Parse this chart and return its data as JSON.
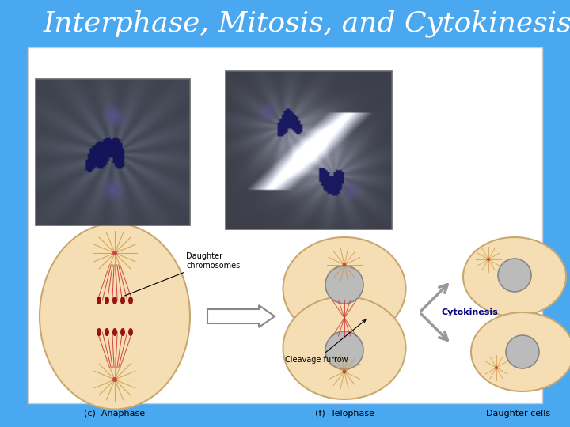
{
  "title": "Interphase, Mitosis, and Cytokinesis",
  "title_color": "#FFFFFF",
  "title_fontsize": 26,
  "background_color": "#4AA8F0",
  "white_panel_color": "#FFFFFF",
  "label_anaphase": "(c)  Anaphase",
  "label_telophase": "(f)  Telophase",
  "label_daughter": "Daughter cells",
  "label_daughter_chrom": "Daughter\nchromosomes",
  "label_cleavage": "Cleavage furrow",
  "label_cytokinesis": "Cytokinesis",
  "cell_fill_color": "#F5DEB3",
  "cell_edge_color": "#C8A870",
  "nucleus_fill": "#BBBBBB",
  "nucleus_edge": "#888888",
  "spindle_color": "#CC3333",
  "aster_color": "#CC9944",
  "img1_bg_light": "#A8B8CC",
  "img1_bg_dark": "#6878A0",
  "img2_bg_light": "#B0B8CC",
  "img2_bg_dark": "#7880A8",
  "chrom_color": "#1A1A6E",
  "arrow_color": "#AAAAAA",
  "cytokinesis_text_color": "#000080"
}
